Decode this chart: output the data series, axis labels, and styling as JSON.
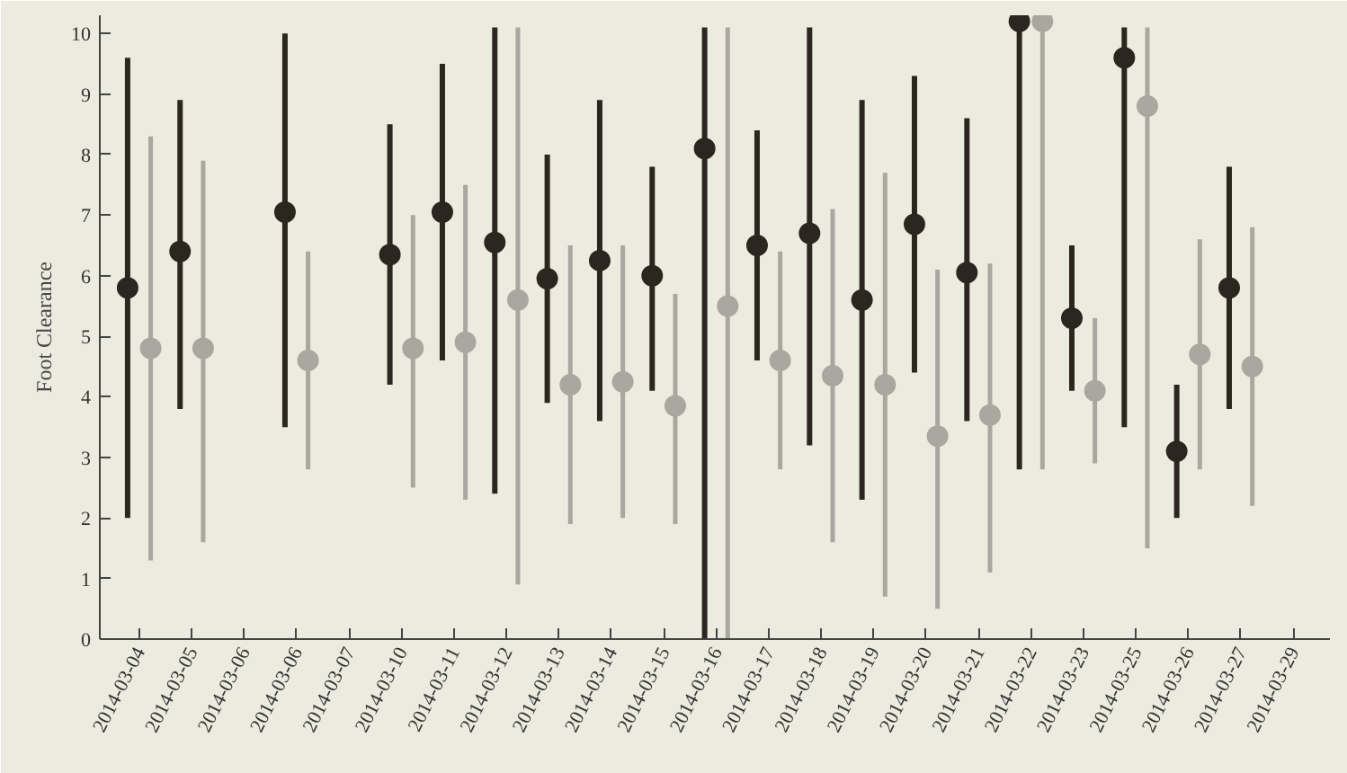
{
  "chart_data": {
    "type": "scatter",
    "ylabel": "Foot Clearance",
    "categories": [
      "2014-03-04",
      "2014-03-05",
      "2014-03-06",
      "2014-03-06",
      "2014-03-07",
      "2014-03-10",
      "2014-03-11",
      "2014-03-12",
      "2014-03-13",
      "2014-03-14",
      "2014-03-15",
      "2014-03-16",
      "2014-03-17",
      "2014-03-18",
      "2014-03-19",
      "2014-03-20",
      "2014-03-21",
      "2014-03-22",
      "2014-03-23",
      "2014-03-25",
      "2014-03-26",
      "2014-03-27",
      "2014-03-29"
    ],
    "ylim": [
      0,
      10.3
    ],
    "yticks": [
      0,
      1,
      2,
      3,
      4,
      5,
      6,
      7,
      8,
      9,
      10
    ],
    "grid": false,
    "marker": "circle",
    "series": [
      {
        "color": "#2b2620",
        "values": [
          5.8,
          6.4,
          null,
          7.05,
          null,
          6.35,
          7.05,
          6.55,
          5.95,
          6.25,
          6.0,
          8.1,
          6.5,
          6.7,
          5.6,
          6.85,
          6.05,
          10.2,
          5.3,
          9.6,
          3.1,
          5.8,
          null
        ],
        "errors": [
          [
            2.0,
            9.6
          ],
          [
            3.8,
            8.9
          ],
          null,
          [
            3.5,
            10.0
          ],
          null,
          [
            4.2,
            8.5
          ],
          [
            4.6,
            9.5
          ],
          [
            2.4,
            10.1
          ],
          [
            3.9,
            8.0
          ],
          [
            3.6,
            8.9
          ],
          [
            4.1,
            7.8
          ],
          [
            0,
            10.1
          ],
          [
            4.6,
            8.4
          ],
          [
            3.2,
            10.1
          ],
          [
            2.3,
            8.9
          ],
          [
            4.4,
            9.3
          ],
          [
            3.6,
            8.6
          ],
          [
            2.8,
            10.2
          ],
          [
            4.1,
            6.5
          ],
          [
            3.5,
            10.1
          ],
          [
            2.0,
            4.2
          ],
          [
            3.8,
            7.8
          ],
          null
        ]
      },
      {
        "color": "#a8a8a0",
        "values": [
          4.8,
          4.8,
          null,
          4.6,
          null,
          4.8,
          4.9,
          5.6,
          4.2,
          4.25,
          3.85,
          5.5,
          4.6,
          4.35,
          4.2,
          3.35,
          3.7,
          10.2,
          4.1,
          8.8,
          4.7,
          4.5,
          null
        ],
        "errors": [
          [
            1.3,
            8.3
          ],
          [
            1.6,
            7.9
          ],
          null,
          [
            2.8,
            6.4
          ],
          null,
          [
            2.5,
            7.0
          ],
          [
            2.3,
            7.5
          ],
          [
            0.9,
            10.1
          ],
          [
            1.9,
            6.5
          ],
          [
            2.0,
            6.5
          ],
          [
            1.9,
            5.7
          ],
          [
            0,
            10.1
          ],
          [
            2.8,
            6.4
          ],
          [
            1.6,
            7.1
          ],
          [
            0.7,
            7.7
          ],
          [
            0.5,
            6.1
          ],
          [
            1.1,
            6.2
          ],
          [
            2.8,
            10.2
          ],
          [
            2.9,
            5.3
          ],
          [
            1.5,
            10.1
          ],
          [
            2.8,
            6.6
          ],
          [
            2.2,
            6.8
          ],
          null
        ]
      }
    ]
  }
}
